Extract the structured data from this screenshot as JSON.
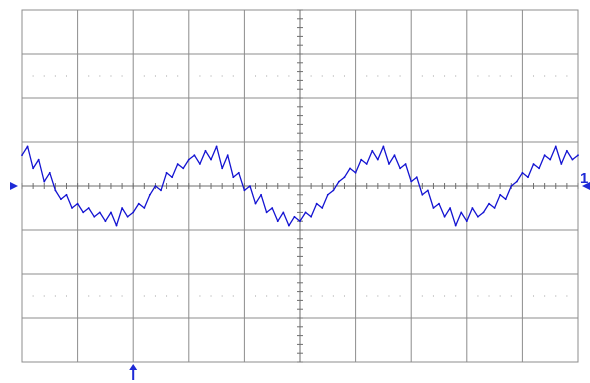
{
  "colors": {
    "trace": "#1414d2",
    "grid": "#8c8c8c",
    "axis": "#6e6e6e",
    "dots": "#a0a0a0",
    "marker": "#1e2ad6",
    "background": "#ffffff"
  },
  "channel": {
    "label": "1"
  },
  "chart_data": {
    "type": "line",
    "title": "",
    "xlabel": "",
    "ylabel": "",
    "grid": true,
    "divisions": {
      "x": 10,
      "y": 8
    },
    "xlim": [
      0,
      10
    ],
    "ylim": [
      -4,
      4
    ],
    "markers": {
      "ground_level_div": 0.0,
      "trigger_position_div": 2.0,
      "channel_marker": "left-and-right-edge",
      "trigger_marker": "bottom"
    },
    "series": [
      {
        "x": [
          0,
          0.1,
          0.2,
          0.3,
          0.4,
          0.5,
          0.6,
          0.7,
          0.8,
          0.9,
          1.0,
          1.1,
          1.2,
          1.3,
          1.4,
          1.5,
          1.6,
          1.7,
          1.8,
          1.9,
          2.0,
          2.1,
          2.2,
          2.3,
          2.4,
          2.5,
          2.6,
          2.7,
          2.8,
          2.9,
          3.0,
          3.1,
          3.2,
          3.3,
          3.4,
          3.5,
          3.6,
          3.7,
          3.8,
          3.9,
          4.0,
          4.1,
          4.2,
          4.3,
          4.4,
          4.5,
          4.6,
          4.7,
          4.8,
          4.9,
          5.0,
          5.1,
          5.2,
          5.3,
          5.4,
          5.5,
          5.6,
          5.7,
          5.8,
          5.9,
          6.0,
          6.1,
          6.2,
          6.3,
          6.4,
          6.5,
          6.6,
          6.7,
          6.8,
          6.9,
          7.0,
          7.1,
          7.2,
          7.3,
          7.4,
          7.5,
          7.6,
          7.7,
          7.8,
          7.9,
          8.0,
          8.1,
          8.2,
          8.3,
          8.4,
          8.5,
          8.6,
          8.7,
          8.8,
          8.9,
          9.0,
          9.1,
          9.2,
          9.3,
          9.4,
          9.5,
          9.6,
          9.7,
          9.8,
          9.9,
          10.0
        ],
        "y": [
          0.7,
          0.9,
          0.4,
          0.6,
          0.1,
          0.3,
          -0.1,
          -0.3,
          -0.2,
          -0.5,
          -0.4,
          -0.6,
          -0.5,
          -0.7,
          -0.6,
          -0.8,
          -0.6,
          -0.9,
          -0.5,
          -0.7,
          -0.6,
          -0.4,
          -0.5,
          -0.2,
          0.0,
          -0.1,
          0.3,
          0.2,
          0.5,
          0.4,
          0.6,
          0.7,
          0.5,
          0.8,
          0.6,
          0.9,
          0.4,
          0.7,
          0.2,
          0.3,
          -0.1,
          0.0,
          -0.4,
          -0.2,
          -0.6,
          -0.5,
          -0.8,
          -0.6,
          -0.9,
          -0.7,
          -0.8,
          -0.6,
          -0.7,
          -0.4,
          -0.5,
          -0.2,
          -0.1,
          0.1,
          0.2,
          0.4,
          0.3,
          0.6,
          0.5,
          0.8,
          0.6,
          0.9,
          0.5,
          0.7,
          0.4,
          0.5,
          0.1,
          0.2,
          -0.2,
          -0.1,
          -0.5,
          -0.4,
          -0.7,
          -0.5,
          -0.9,
          -0.6,
          -0.8,
          -0.5,
          -0.7,
          -0.6,
          -0.4,
          -0.5,
          -0.2,
          -0.3,
          0.0,
          0.1,
          0.3,
          0.2,
          0.5,
          0.4,
          0.7,
          0.6,
          0.9,
          0.5,
          0.8,
          0.6,
          0.7
        ]
      }
    ]
  }
}
